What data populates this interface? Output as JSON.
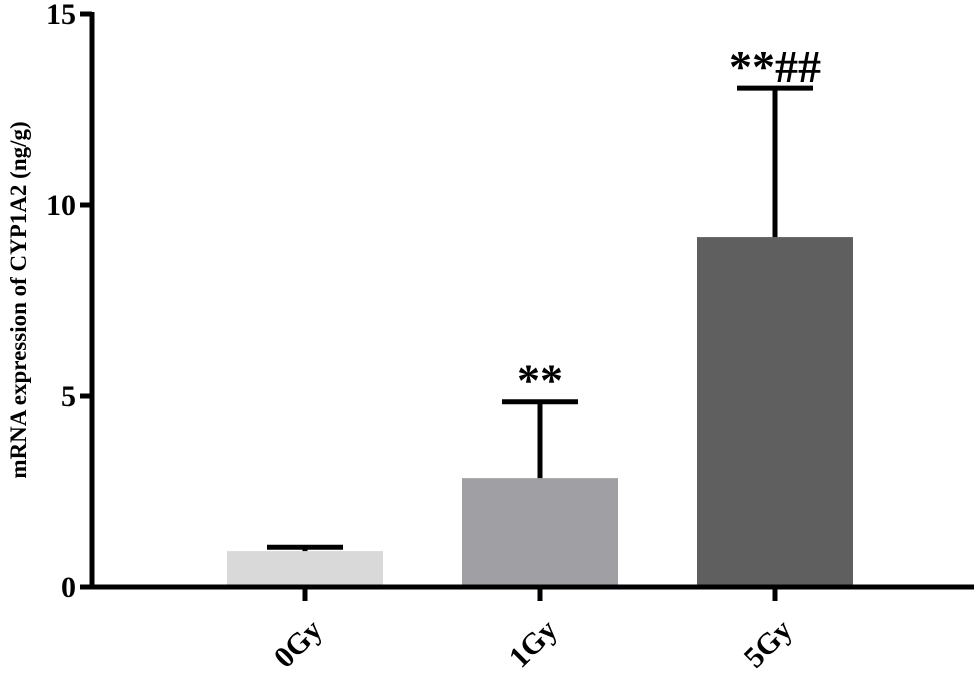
{
  "chart_data": {
    "type": "bar",
    "y_label": "mRNA expression of CYP1A2 (ng/g)",
    "categories": [
      "0Gy",
      "1Gy",
      "5Gy"
    ],
    "values": [
      0.94,
      2.85,
      9.16
    ],
    "errors": [
      0.1,
      2.0,
      3.9
    ],
    "colors": [
      "#d9d9d9",
      "#a0a0a4",
      "#5f5f5f"
    ],
    "annotations": [
      {
        "category": "1Gy",
        "text": "**"
      },
      {
        "category": "5Gy",
        "text": "**##"
      }
    ],
    "ylim": [
      0,
      15
    ],
    "yticks": [
      0,
      5,
      10,
      15
    ],
    "grid": false
  }
}
